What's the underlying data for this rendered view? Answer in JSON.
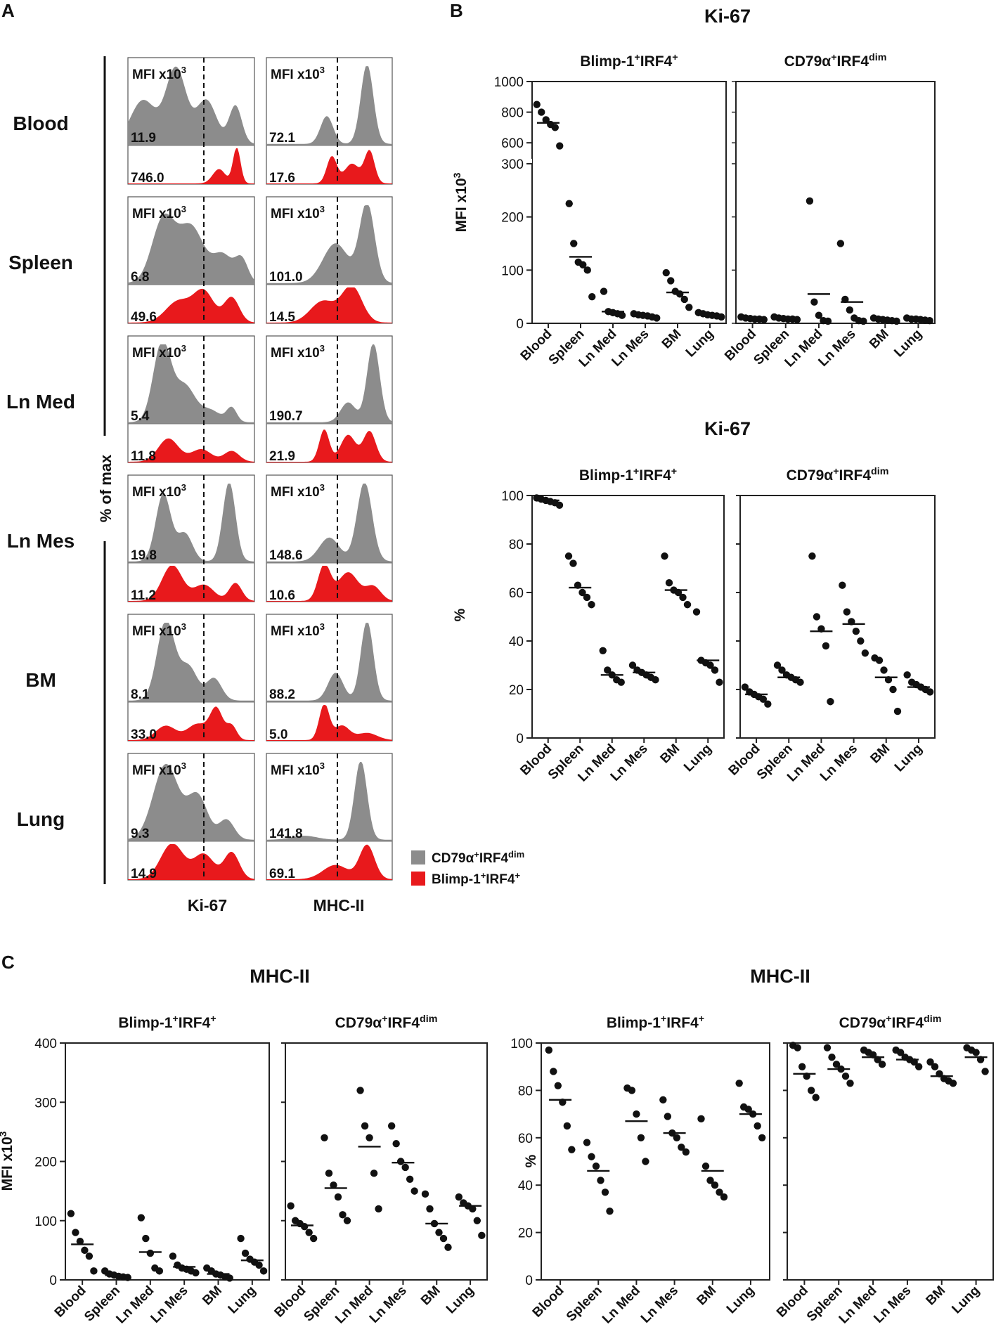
{
  "panel_labels": {
    "a": "A",
    "b": "B",
    "c": "C"
  },
  "colors": {
    "gray": "#8c8c8c",
    "red": "#e8191c",
    "black": "#111111"
  },
  "panel_a": {
    "tissues": [
      "Blood",
      "Spleen",
      "Ln Med",
      "Ln Mes",
      "BM",
      "Lung"
    ],
    "mfi_label": "MFI x10",
    "mfi_exp": "3",
    "y_axis_label": "% of max",
    "x_labels": [
      "Ki-67",
      "MHC-II"
    ],
    "ki67": {
      "gray": [
        "11.9",
        "6.8",
        "5.4",
        "19.8",
        "8.1",
        "9.3"
      ],
      "red": [
        "746.0",
        "49.6",
        "11.8",
        "11.2",
        "33.0",
        "14.9"
      ]
    },
    "mhc": {
      "gray": [
        "72.1",
        "101.0",
        "190.7",
        "148.6",
        "88.2",
        "141.8"
      ],
      "red": [
        "17.6",
        "14.5",
        "21.9",
        "10.6",
        "5.0",
        "69.1"
      ]
    },
    "legend": [
      {
        "base": "CD79α",
        "sup1": "+",
        "mid": "IRF4",
        "sup2": "dim",
        "color": "#8c8c8c"
      },
      {
        "base": "Blimp-1",
        "sup1": "+",
        "mid": "IRF4",
        "sup2": "+",
        "color": "#e8191c"
      }
    ]
  },
  "chart_data": [
    {
      "type": "scatter",
      "id": "b_mfi",
      "title": "Ki-67",
      "ylabel": "MFI x10",
      "ylabel_exp": "3",
      "categories": [
        "Blood",
        "Spleen",
        "Ln Med",
        "Ln Mes",
        "BM",
        "Lung"
      ],
      "y_segments": [
        {
          "range": [
            0,
            300
          ],
          "ticks": [
            0,
            100,
            200,
            300
          ]
        },
        {
          "range": [
            500,
            1000
          ],
          "ticks": [
            600,
            800,
            1000
          ]
        }
      ],
      "subplots": [
        {
          "name_base": "Blimp-1",
          "name_sup1": "+",
          "name_mid": "IRF4",
          "name_sup2": "+",
          "points": [
            [
              850,
              800,
              750,
              720,
              700,
              580
            ],
            [
              225,
              150,
              115,
              110,
              100,
              50
            ],
            [
              60,
              22,
              20,
              18,
              15
            ],
            [
              18,
              16,
              15,
              14,
              12,
              10
            ],
            [
              95,
              80,
              60,
              55,
              45,
              30
            ],
            [
              20,
              18,
              16,
              15,
              14,
              12
            ]
          ],
          "means": [
            730,
            125,
            22,
            15,
            58,
            16
          ]
        },
        {
          "name_base": "CD79α",
          "name_sup1": "+",
          "name_mid": "IRF4",
          "name_sup2": "dim",
          "points": [
            [
              12,
              10,
              9,
              8,
              8,
              7
            ],
            [
              12,
              10,
              9,
              8,
              8,
              7
            ],
            [
              230,
              40,
              15,
              5,
              4
            ],
            [
              150,
              45,
              25,
              10,
              5,
              4
            ],
            [
              10,
              8,
              7,
              6,
              5,
              4
            ],
            [
              10,
              8,
              8,
              7,
              6,
              5
            ]
          ],
          "means": [
            9,
            9,
            55,
            40,
            7,
            7
          ]
        }
      ]
    },
    {
      "type": "scatter",
      "id": "b_pct",
      "title": "Ki-67",
      "ylabel": "%",
      "ylim": [
        0,
        100
      ],
      "yticks": [
        0,
        20,
        40,
        60,
        80,
        100
      ],
      "categories": [
        "Blood",
        "Spleen",
        "Ln Med",
        "Ln Mes",
        "BM",
        "Lung"
      ],
      "subplots": [
        {
          "name_base": "Blimp-1",
          "name_sup1": "+",
          "name_mid": "IRF4",
          "name_sup2": "+",
          "points": [
            [
              99,
              98.5,
              98,
              97.5,
              97,
              96
            ],
            [
              75,
              72,
              63,
              60,
              58,
              55
            ],
            [
              36,
              28,
              26,
              24,
              23
            ],
            [
              30,
              28,
              27,
              26,
              25,
              24
            ],
            [
              75,
              64,
              61,
              60,
              58,
              55
            ],
            [
              52,
              32,
              31,
              30,
              28,
              23
            ]
          ],
          "means": [
            98,
            62,
            26,
            27,
            61,
            32
          ]
        },
        {
          "name_base": "CD79α",
          "name_sup1": "+",
          "name_mid": "IRF4",
          "name_sup2": "dim",
          "points": [
            [
              21,
              19,
              18,
              17,
              16,
              14
            ],
            [
              30,
              28,
              26,
              25,
              24,
              23
            ],
            [
              75,
              50,
              45,
              38,
              15
            ],
            [
              63,
              52,
              48,
              44,
              40,
              35
            ],
            [
              33,
              32,
              28,
              24,
              20,
              11
            ],
            [
              26,
              23,
              22,
              21,
              20,
              19
            ]
          ],
          "means": [
            18,
            25,
            44,
            47,
            25,
            21
          ]
        }
      ]
    },
    {
      "type": "scatter",
      "id": "c_mfi",
      "title": "MHC-II",
      "ylabel": "MFI x10",
      "ylabel_exp": "3",
      "ylim": [
        0,
        400
      ],
      "yticks": [
        0,
        100,
        200,
        300,
        400
      ],
      "categories": [
        "Blood",
        "Spleen",
        "Ln Med",
        "Ln Mes",
        "BM",
        "Lung"
      ],
      "subplots": [
        {
          "name_base": "Blimp-1",
          "name_sup1": "+",
          "name_mid": "IRF4",
          "name_sup2": "+",
          "points": [
            [
              112,
              80,
              65,
              50,
              40,
              15
            ],
            [
              15,
              10,
              8,
              6,
              5,
              4
            ],
            [
              105,
              70,
              45,
              20,
              15
            ],
            [
              40,
              25,
              20,
              18,
              15,
              12
            ],
            [
              20,
              15,
              10,
              8,
              5,
              3
            ],
            [
              70,
              45,
              35,
              30,
              25,
              15
            ]
          ],
          "means": [
            60,
            8,
            47,
            22,
            10,
            33
          ]
        },
        {
          "name_base": "CD79α",
          "name_sup1": "+",
          "name_mid": "IRF4",
          "name_sup2": "dim",
          "points": [
            [
              125,
              100,
              95,
              90,
              80,
              70
            ],
            [
              240,
              180,
              160,
              140,
              110,
              100
            ],
            [
              320,
              260,
              240,
              180,
              120
            ],
            [
              260,
              230,
              200,
              190,
              170,
              150
            ],
            [
              145,
              120,
              95,
              80,
              70,
              55
            ],
            [
              140,
              130,
              125,
              120,
              100,
              75
            ]
          ],
          "means": [
            92,
            155,
            225,
            198,
            95,
            125
          ]
        }
      ]
    },
    {
      "type": "scatter",
      "id": "c_pct",
      "title": "MHC-II",
      "ylabel": "%",
      "ylim": [
        0,
        100
      ],
      "yticks": [
        0,
        20,
        40,
        60,
        80,
        100
      ],
      "categories": [
        "Blood",
        "Spleen",
        "Ln Med",
        "Ln Mes",
        "BM",
        "Lung"
      ],
      "subplots": [
        {
          "name_base": "Blimp-1",
          "name_sup1": "+",
          "name_mid": "IRF4",
          "name_sup2": "+",
          "points": [
            [
              97,
              88,
              82,
              75,
              65,
              55
            ],
            [
              58,
              52,
              48,
              42,
              37,
              29
            ],
            [
              81,
              80,
              70,
              60,
              50
            ],
            [
              76,
              69,
              62,
              60,
              56,
              54
            ],
            [
              68,
              48,
              42,
              40,
              37,
              35
            ],
            [
              83,
              73,
              72,
              70,
              65,
              60
            ]
          ],
          "means": [
            76,
            46,
            67,
            62,
            46,
            70
          ]
        },
        {
          "name_base": "CD79α",
          "name_sup1": "+",
          "name_mid": "IRF4",
          "name_sup2": "dim",
          "points": [
            [
              99,
              98,
              90,
              86,
              80,
              77
            ],
            [
              98,
              94,
              91,
              89,
              86,
              83
            ],
            [
              97,
              96,
              95,
              93,
              91
            ],
            [
              97,
              96,
              94,
              93,
              92,
              90
            ],
            [
              92,
              90,
              87,
              85,
              84,
              83
            ],
            [
              98,
              97,
              96,
              93,
              88
            ]
          ],
          "means": [
            87,
            89,
            94,
            93,
            86,
            94
          ]
        }
      ]
    }
  ]
}
